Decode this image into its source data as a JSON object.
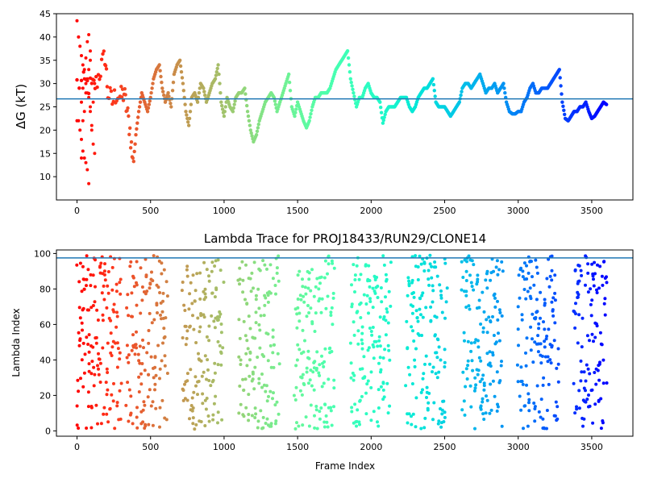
{
  "chart_data": [
    {
      "type": "scatter",
      "title": "",
      "xlabel": "",
      "ylabel": "ΔG (kT)",
      "xlim": [
        -140,
        3780
      ],
      "ylim": [
        5,
        45
      ],
      "xticks": [
        "0",
        "500",
        "1000",
        "1500",
        "2000",
        "2500",
        "3000",
        "3500"
      ],
      "yticks": [
        "10",
        "15",
        "20",
        "25",
        "30",
        "35",
        "40",
        "45"
      ],
      "hline": 26.7,
      "colormap": "rainbow",
      "grid": false,
      "x_range_frames": [
        0,
        3600
      ],
      "trace": [
        [
          0,
          30
        ],
        [
          60,
          30
        ],
        [
          100,
          29
        ],
        [
          130,
          30
        ],
        [
          160,
          33
        ],
        [
          190,
          36
        ],
        [
          210,
          28
        ],
        [
          240,
          26
        ],
        [
          270,
          28
        ],
        [
          300,
          27
        ],
        [
          320,
          28
        ],
        [
          340,
          24
        ],
        [
          360,
          20
        ],
        [
          380,
          13
        ],
        [
          400,
          19
        ],
        [
          420,
          24
        ],
        [
          440,
          28
        ],
        [
          460,
          26
        ],
        [
          480,
          24
        ],
        [
          500,
          27
        ],
        [
          520,
          31
        ],
        [
          540,
          33
        ],
        [
          560,
          34
        ],
        [
          580,
          29
        ],
        [
          600,
          26
        ],
        [
          620,
          28
        ],
        [
          640,
          25
        ],
        [
          660,
          32
        ],
        [
          680,
          34
        ],
        [
          700,
          35
        ],
        [
          720,
          30
        ],
        [
          740,
          24
        ],
        [
          760,
          21
        ],
        [
          780,
          27
        ],
        [
          800,
          28
        ],
        [
          820,
          26
        ],
        [
          840,
          30
        ],
        [
          860,
          29
        ],
        [
          880,
          26
        ],
        [
          900,
          28
        ],
        [
          920,
          30
        ],
        [
          940,
          31
        ],
        [
          960,
          34
        ],
        [
          980,
          26
        ],
        [
          1000,
          23
        ],
        [
          1020,
          27
        ],
        [
          1040,
          25
        ],
        [
          1060,
          24
        ],
        [
          1080,
          27
        ],
        [
          1100,
          28
        ],
        [
          1120,
          28
        ],
        [
          1140,
          29
        ],
        [
          1160,
          24
        ],
        [
          1180,
          20
        ],
        [
          1200,
          17.5
        ],
        [
          1220,
          19
        ],
        [
          1240,
          22
        ],
        [
          1260,
          24
        ],
        [
          1280,
          26
        ],
        [
          1300,
          27
        ],
        [
          1320,
          28
        ],
        [
          1340,
          27
        ],
        [
          1360,
          24
        ],
        [
          1380,
          26
        ],
        [
          1400,
          28
        ],
        [
          1420,
          30
        ],
        [
          1440,
          32
        ],
        [
          1460,
          25
        ],
        [
          1480,
          23
        ],
        [
          1500,
          26
        ],
        [
          1520,
          24
        ],
        [
          1540,
          22
        ],
        [
          1560,
          20.5
        ],
        [
          1580,
          22
        ],
        [
          1600,
          25
        ],
        [
          1620,
          27
        ],
        [
          1640,
          27
        ],
        [
          1660,
          28
        ],
        [
          1680,
          28
        ],
        [
          1700,
          28
        ],
        [
          1720,
          29
        ],
        [
          1740,
          31
        ],
        [
          1760,
          33
        ],
        [
          1780,
          34
        ],
        [
          1800,
          35
        ],
        [
          1820,
          36
        ],
        [
          1840,
          37
        ],
        [
          1860,
          31
        ],
        [
          1880,
          28
        ],
        [
          1900,
          25
        ],
        [
          1920,
          27
        ],
        [
          1940,
          27
        ],
        [
          1960,
          29
        ],
        [
          1980,
          30
        ],
        [
          2000,
          28
        ],
        [
          2020,
          27
        ],
        [
          2040,
          27
        ],
        [
          2060,
          26
        ],
        [
          2080,
          21.5
        ],
        [
          2100,
          24
        ],
        [
          2120,
          25
        ],
        [
          2140,
          25
        ],
        [
          2160,
          25
        ],
        [
          2180,
          26
        ],
        [
          2200,
          27
        ],
        [
          2220,
          27
        ],
        [
          2240,
          27
        ],
        [
          2260,
          25
        ],
        [
          2280,
          24
        ],
        [
          2300,
          25
        ],
        [
          2320,
          27
        ],
        [
          2340,
          28
        ],
        [
          2360,
          29
        ],
        [
          2380,
          29
        ],
        [
          2400,
          30
        ],
        [
          2420,
          31
        ],
        [
          2440,
          26
        ],
        [
          2460,
          25
        ],
        [
          2480,
          25
        ],
        [
          2500,
          25
        ],
        [
          2520,
          24
        ],
        [
          2540,
          23
        ],
        [
          2560,
          24
        ],
        [
          2580,
          25
        ],
        [
          2600,
          26
        ],
        [
          2620,
          29
        ],
        [
          2640,
          30
        ],
        [
          2660,
          30
        ],
        [
          2680,
          29
        ],
        [
          2700,
          30
        ],
        [
          2720,
          31
        ],
        [
          2740,
          32
        ],
        [
          2760,
          30
        ],
        [
          2780,
          28
        ],
        [
          2800,
          29
        ],
        [
          2820,
          29
        ],
        [
          2840,
          30
        ],
        [
          2860,
          28
        ],
        [
          2880,
          29
        ],
        [
          2900,
          30
        ],
        [
          2920,
          26
        ],
        [
          2940,
          24
        ],
        [
          2960,
          23.5
        ],
        [
          2980,
          23.5
        ],
        [
          3000,
          24
        ],
        [
          3020,
          24
        ],
        [
          3040,
          26
        ],
        [
          3060,
          27
        ],
        [
          3080,
          29
        ],
        [
          3100,
          30
        ],
        [
          3120,
          28
        ],
        [
          3140,
          28
        ],
        [
          3160,
          29
        ],
        [
          3180,
          29
        ],
        [
          3200,
          29
        ],
        [
          3220,
          30
        ],
        [
          3240,
          31
        ],
        [
          3260,
          32
        ],
        [
          3280,
          33
        ],
        [
          3300,
          26
        ],
        [
          3320,
          22.5
        ],
        [
          3340,
          22
        ],
        [
          3360,
          23
        ],
        [
          3380,
          24
        ],
        [
          3400,
          24
        ],
        [
          3420,
          25
        ],
        [
          3440,
          25
        ],
        [
          3460,
          26
        ],
        [
          3480,
          24
        ],
        [
          3500,
          22.5
        ],
        [
          3520,
          23
        ],
        [
          3540,
          24
        ],
        [
          3560,
          25
        ],
        [
          3580,
          26
        ],
        [
          3600,
          25.5
        ]
      ],
      "early_scatter_y": [
        43.5,
        40,
        38,
        36,
        34,
        31,
        30,
        28,
        27,
        25,
        22,
        22,
        20,
        18,
        15.5,
        14,
        13,
        11.5,
        8.5,
        24,
        26,
        29,
        33,
        35.5,
        39,
        40.5,
        37,
        21,
        17,
        15,
        14,
        22,
        24,
        28,
        31,
        33,
        35,
        20,
        26,
        30
      ]
    },
    {
      "type": "scatter",
      "title": "Lambda Trace for PROJ18433/RUN29/CLONE14",
      "xlabel": "Frame Index",
      "ylabel": "Lambda Index",
      "xlim": [
        -140,
        3780
      ],
      "ylim": [
        -3,
        102
      ],
      "xticks": [
        "0",
        "500",
        "1000",
        "1500",
        "2000",
        "2500",
        "3000",
        "3500"
      ],
      "yticks": [
        "0",
        "20",
        "40",
        "60",
        "80",
        "100"
      ],
      "hline": 97.5,
      "colormap": "rainbow",
      "grid": false,
      "x_range_frames": [
        0,
        3600
      ],
      "lambda_min": 1,
      "lambda_max": 99
    }
  ]
}
